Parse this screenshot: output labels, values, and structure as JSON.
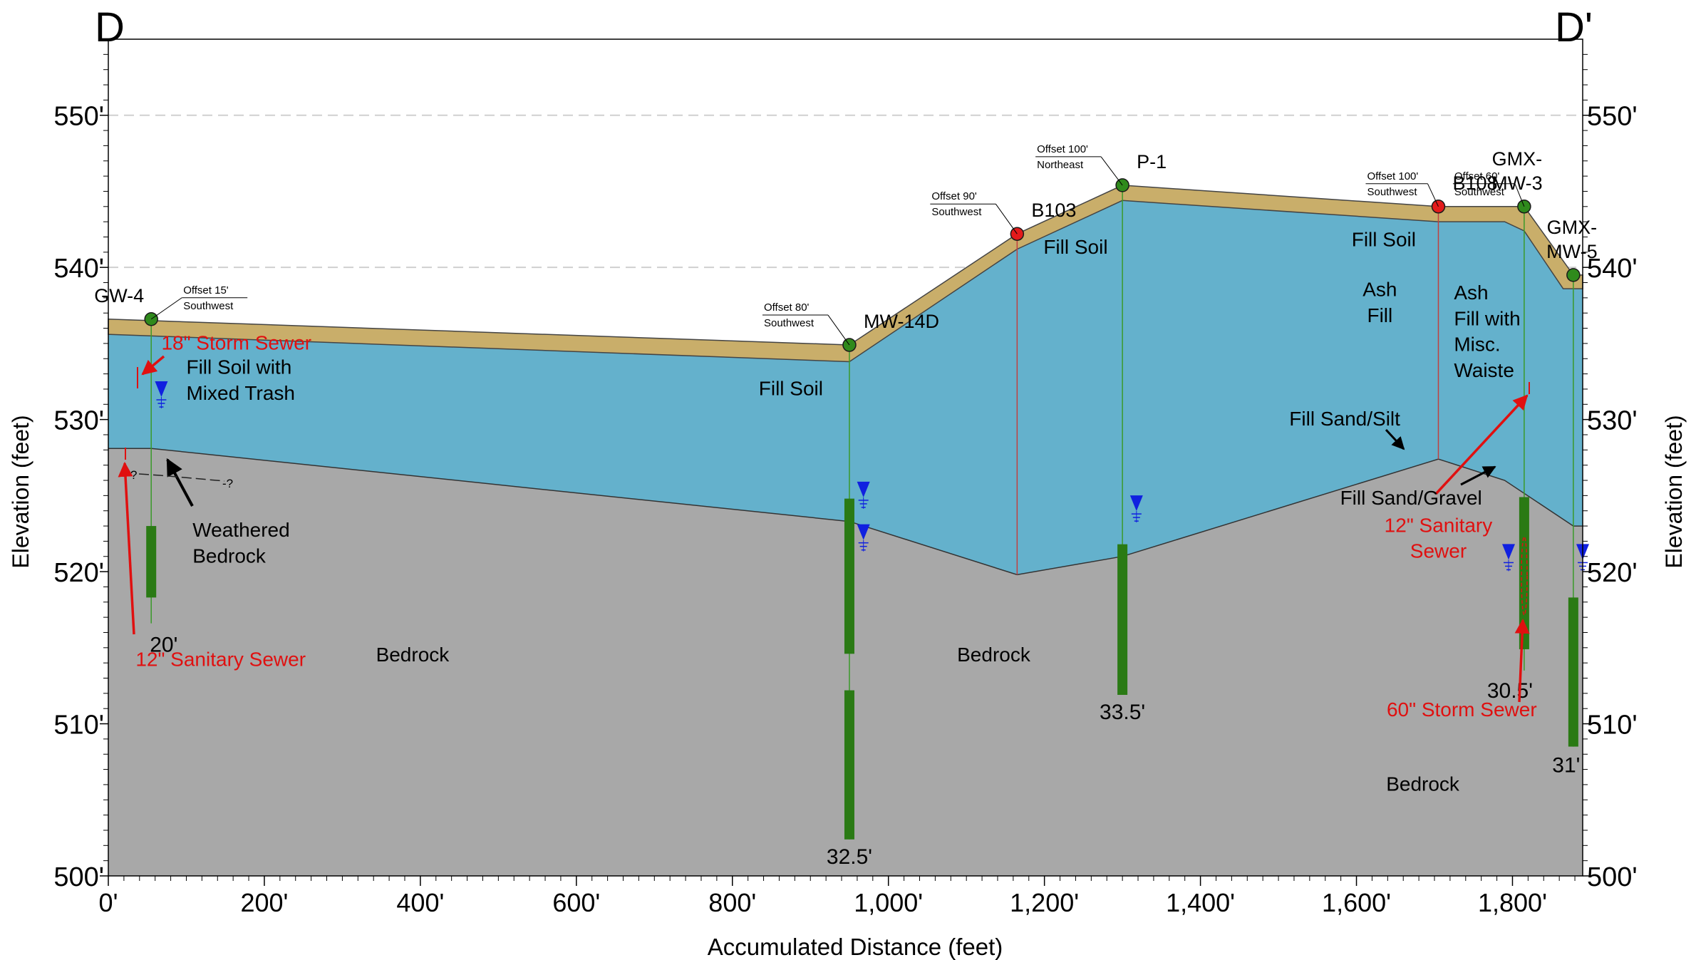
{
  "section_labels": {
    "left": "D",
    "right": "D'"
  },
  "axes": {
    "x_label": "Accumulated Distance (feet)",
    "y_label_left": "Elevation (feet)",
    "y_label_right": "Elevation (feet)",
    "x_range": [
      0,
      1890
    ],
    "y_range": [
      500,
      555
    ],
    "x_ticks": [
      {
        "v": 0,
        "label": "0'"
      },
      {
        "v": 200,
        "label": "200'"
      },
      {
        "v": 400,
        "label": "400'"
      },
      {
        "v": 600,
        "label": "600'"
      },
      {
        "v": 800,
        "label": "800'"
      },
      {
        "v": 1000,
        "label": "1,000'"
      },
      {
        "v": 1200,
        "label": "1,200'"
      },
      {
        "v": 1400,
        "label": "1,400'"
      },
      {
        "v": 1600,
        "label": "1,600'"
      },
      {
        "v": 1800,
        "label": "1,800'"
      }
    ],
    "y_ticks": [
      {
        "v": 500,
        "label": "500'"
      },
      {
        "v": 510,
        "label": "510'"
      },
      {
        "v": 520,
        "label": "520'"
      },
      {
        "v": 530,
        "label": "530'"
      },
      {
        "v": 540,
        "label": "540'"
      },
      {
        "v": 550,
        "label": "550'"
      }
    ]
  },
  "colors": {
    "topsoil": "#c9ae6a",
    "fill": "#64b1cc",
    "bedrock": "#a8a8a8",
    "well": "#2f8a1c",
    "boring": "#e31b1b",
    "screen": "#2a7a14",
    "water": "#1020e0",
    "utility": "#e01010",
    "grid": "#d0d0d0"
  },
  "layers": {
    "ground_surface": [
      [
        0,
        536.6
      ],
      [
        950,
        534.9
      ],
      [
        1165,
        542.2
      ],
      [
        1300,
        545.4
      ],
      [
        1705,
        544
      ],
      [
        1815,
        544
      ],
      [
        1878,
        539.5
      ],
      [
        1890,
        539.5
      ]
    ],
    "fill_top": [
      [
        0,
        535.6
      ],
      [
        950,
        533.8
      ],
      [
        1165,
        541.2
      ],
      [
        1300,
        544.4
      ],
      [
        1705,
        543
      ],
      [
        1790,
        543
      ],
      [
        1815,
        542.4
      ],
      [
        1865,
        538.6
      ],
      [
        1890,
        538.6
      ]
    ],
    "bedrock_top": [
      [
        0,
        528.1
      ],
      [
        55,
        528.1
      ],
      [
        950,
        523.3
      ],
      [
        1165,
        519.8
      ],
      [
        1300,
        521
      ],
      [
        1705,
        527.4
      ],
      [
        1790,
        526
      ],
      [
        1878,
        523
      ],
      [
        1890,
        523
      ]
    ]
  },
  "locations": [
    {
      "id": "GW-4",
      "type": "well",
      "x": 55,
      "ground": 536.6,
      "name_lines": [
        "GW-4"
      ],
      "offset": "Offset 15'",
      "direction": "Southwest",
      "bottom": 516.6,
      "depth_label": "20'",
      "screen": [
        518.3,
        523
      ]
    },
    {
      "id": "MW-14D",
      "type": "well",
      "x": 950,
      "ground": 534.9,
      "name_lines": [
        "MW-14D"
      ],
      "offset": "Offset 80'",
      "direction": "Southwest",
      "bottom": 502.4,
      "depth_label": "32.5'",
      "screen": [
        502.4,
        512.2
      ],
      "screen2": [
        514.6,
        524.8
      ]
    },
    {
      "id": "B103",
      "type": "boring",
      "x": 1165,
      "ground": 542.2,
      "name_lines": [
        "B103"
      ],
      "offset": "Offset 90'",
      "direction": "Southwest",
      "bottom": 519.8,
      "depth_label": ""
    },
    {
      "id": "P-1",
      "type": "well",
      "x": 1300,
      "ground": 545.4,
      "name_lines": [
        "P-1"
      ],
      "offset": "Offset 100'",
      "direction": "Northeast",
      "bottom": 511.9,
      "depth_label": "33.5'",
      "screen": [
        511.9,
        521.8
      ]
    },
    {
      "id": "B108",
      "type": "boring",
      "x": 1705,
      "ground": 544,
      "name_lines": [
        "B108"
      ],
      "offset": "Offset 100'",
      "direction": "Southwest",
      "bottom": 527.4,
      "depth_label": ""
    },
    {
      "id": "GMX-MW-3",
      "type": "well",
      "x": 1815,
      "ground": 544,
      "name_lines": [
        "GMX-",
        "MW-3"
      ],
      "offset": "Offset 60'",
      "direction": "Southwest",
      "bottom": 513.5,
      "depth_label": "30.5'",
      "screen": [
        514.9,
        524.9
      ]
    },
    {
      "id": "GMX-MW-5",
      "type": "well",
      "x": 1878,
      "ground": 539.5,
      "name_lines": [
        "GMX-",
        "MW-5"
      ],
      "offset": "",
      "direction": "",
      "bottom": 508.5,
      "depth_label": "31'",
      "screen": [
        508.5,
        518.3
      ]
    }
  ],
  "water_levels": [
    {
      "x": 68,
      "y": 531.2
    },
    {
      "x": 968,
      "y": 524.6
    },
    {
      "x": 968,
      "y": 521.8
    },
    {
      "x": 1318,
      "y": 523.7
    },
    {
      "x": 1795,
      "y": 520.5
    },
    {
      "x": 1890,
      "y": 520.5
    }
  ],
  "unit_labels": [
    {
      "text": "Fill Soil with",
      "x": 100,
      "y": 533,
      "anchor": "start"
    },
    {
      "text": "Mixed Trash",
      "x": 100,
      "y": 531.3,
      "anchor": "start"
    },
    {
      "text": "Fill Soil",
      "x": 875,
      "y": 531.6,
      "anchor": "middle"
    },
    {
      "text": "Fill Soil",
      "x": 1240,
      "y": 540.9,
      "anchor": "middle"
    },
    {
      "text": "Fill Soil",
      "x": 1635,
      "y": 541.4,
      "anchor": "middle"
    },
    {
      "text": "Ash",
      "x": 1630,
      "y": 538.1,
      "anchor": "middle"
    },
    {
      "text": "Fill",
      "x": 1630,
      "y": 536.4,
      "anchor": "middle"
    },
    {
      "text": "Ash",
      "x": 1725,
      "y": 537.9,
      "anchor": "start"
    },
    {
      "text": "Fill with",
      "x": 1725,
      "y": 536.2,
      "anchor": "start"
    },
    {
      "text": "Misc.",
      "x": 1725,
      "y": 534.5,
      "anchor": "start"
    },
    {
      "text": "Waiste",
      "x": 1725,
      "y": 532.8,
      "anchor": "start"
    },
    {
      "text": "Fill Sand/Silt",
      "x": 1585,
      "y": 529.6,
      "anchor": "middle"
    },
    {
      "text": "Fill Sand/Gravel",
      "x": 1670,
      "y": 524.4,
      "anchor": "middle"
    },
    {
      "text": "Weathered",
      "x": 108,
      "y": 522.3,
      "anchor": "start"
    },
    {
      "text": "Bedrock",
      "x": 108,
      "y": 520.6,
      "anchor": "start"
    },
    {
      "text": "Bedrock",
      "x": 390,
      "y": 514.1,
      "anchor": "middle"
    },
    {
      "text": "Bedrock",
      "x": 1135,
      "y": 514.1,
      "anchor": "middle"
    },
    {
      "text": "Bedrock",
      "x": 1685,
      "y": 505.6,
      "anchor": "middle"
    }
  ],
  "utility_labels": [
    {
      "lines": [
        "18\" Storm Sewer"
      ],
      "x": 68,
      "y": 534.6,
      "anchor": "start"
    },
    {
      "lines": [
        "12\" Sanitary Sewer"
      ],
      "x": 35,
      "y": 513.8,
      "anchor": "start"
    },
    {
      "lines": [
        "12\" Sanitary",
        "Sewer"
      ],
      "x": 1705,
      "y": 522.6,
      "anchor": "middle"
    },
    {
      "lines": [
        "60\" Storm Sewer"
      ],
      "x": 1735,
      "y": 510.5,
      "anchor": "middle"
    }
  ],
  "query_marks": [
    "?",
    "-?"
  ]
}
